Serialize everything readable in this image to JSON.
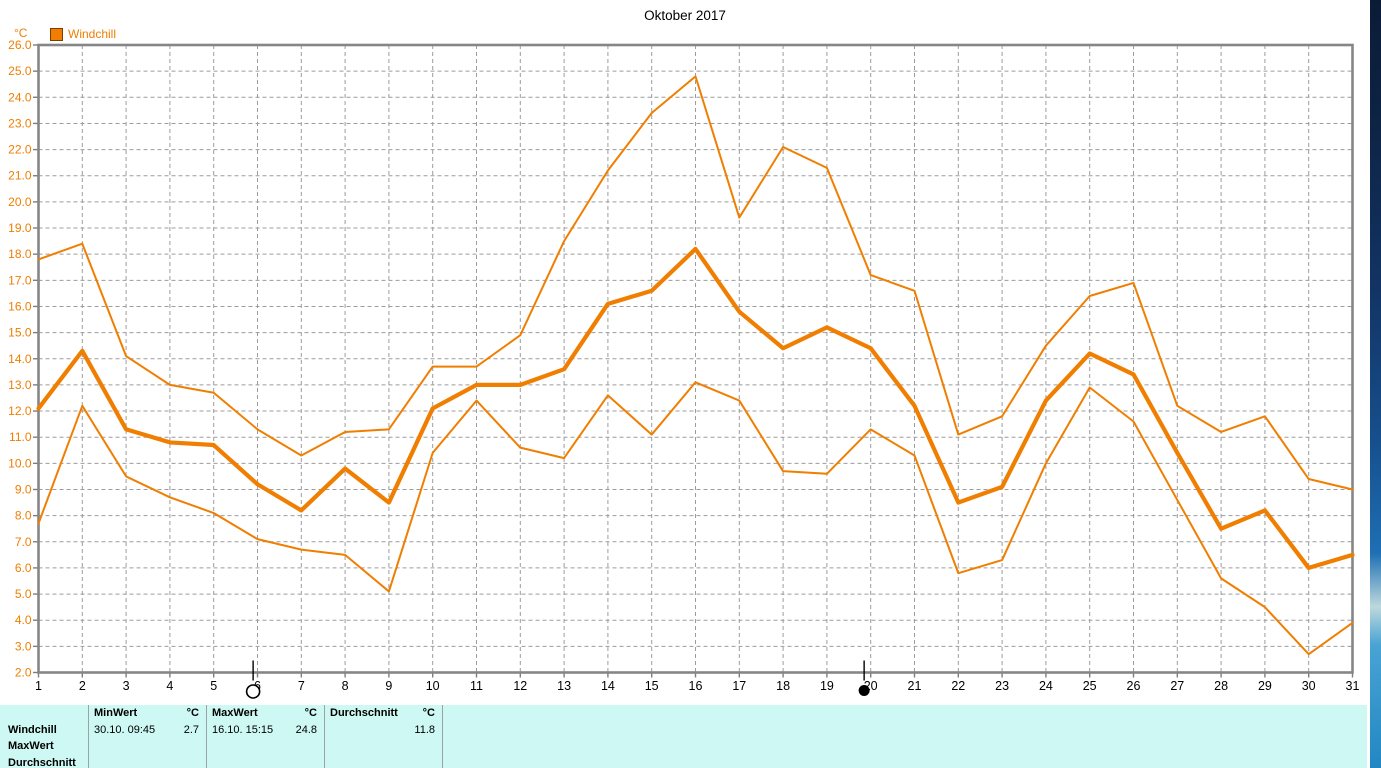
{
  "title": "Oktober 2017",
  "legend": {
    "label": "Windchill",
    "swatch_color": "#F07E00"
  },
  "chart_data": {
    "type": "line",
    "title": "Oktober 2017",
    "ylabel": "°C",
    "xlabel": "",
    "ylim": [
      2.0,
      26.0
    ],
    "y_tick_step": 1.0,
    "grid": true,
    "series_color": "#F07E00",
    "x_ticks": [
      1,
      2,
      3,
      4,
      5,
      6,
      7,
      8,
      9,
      10,
      11,
      12,
      13,
      14,
      15,
      16,
      17,
      18,
      19,
      20,
      21,
      22,
      23,
      24,
      25,
      26,
      27,
      28,
      29,
      30,
      31
    ],
    "series": [
      {
        "name": "MaxWert",
        "line": "thin",
        "values": [
          17.8,
          18.4,
          14.1,
          13.0,
          12.7,
          11.3,
          10.3,
          11.2,
          11.3,
          13.7,
          13.7,
          14.9,
          18.5,
          21.2,
          23.4,
          24.8,
          19.4,
          22.1,
          21.3,
          17.2,
          16.6,
          11.1,
          11.8,
          14.5,
          16.4,
          16.9,
          12.2,
          11.2,
          11.8,
          9.4,
          9.0
        ]
      },
      {
        "name": "Durchschnitt",
        "line": "thick",
        "values": [
          12.1,
          14.3,
          11.3,
          10.8,
          10.7,
          9.2,
          8.2,
          9.8,
          8.5,
          12.1,
          13.0,
          13.0,
          13.6,
          16.1,
          16.6,
          18.2,
          15.8,
          14.4,
          15.2,
          14.4,
          12.2,
          8.5,
          9.1,
          12.4,
          14.2,
          13.4,
          10.4,
          7.5,
          8.2,
          6.0,
          6.5
        ]
      },
      {
        "name": "MinWert",
        "line": "thin",
        "values": [
          7.7,
          12.2,
          9.5,
          8.7,
          8.1,
          7.1,
          6.7,
          6.5,
          5.1,
          10.4,
          12.4,
          10.6,
          10.2,
          12.6,
          11.1,
          13.1,
          12.4,
          9.7,
          9.6,
          11.3,
          10.3,
          5.8,
          6.3,
          10.0,
          12.9,
          11.6,
          8.6,
          5.6,
          4.5,
          2.7,
          3.9
        ]
      }
    ],
    "moon_phase_markers": [
      {
        "symbol": "full-moon",
        "day": 5.9
      },
      {
        "symbol": "new-moon",
        "day": 19.85
      }
    ]
  },
  "table": {
    "row_labels": [
      "Windchill",
      "MaxWert",
      "Durchschnitt"
    ],
    "min": {
      "header": "MinWert",
      "unit": "°C",
      "datetime": "30.10.  09:45",
      "value": "2.7"
    },
    "max": {
      "header": "MaxWert",
      "unit": "°C",
      "datetime": "16.10.  15:15",
      "value": "24.8"
    },
    "avg": {
      "header": "Durchschnitt",
      "unit": "°C",
      "datetime": "",
      "value": "11.8"
    }
  }
}
